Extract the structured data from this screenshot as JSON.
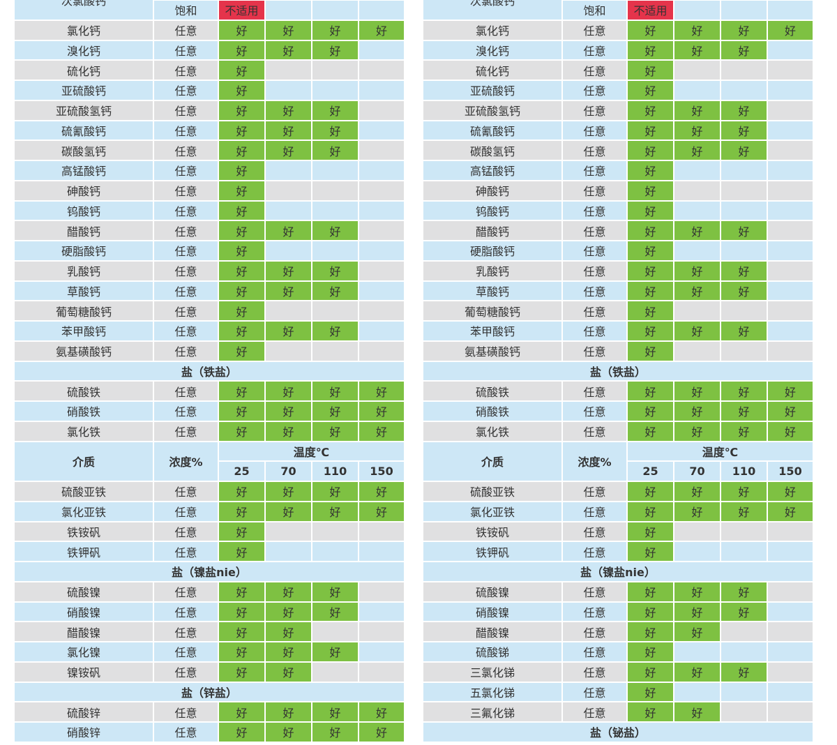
{
  "tables": [
    {
      "rows": [
        {
          "name": "次氯酸钙",
          "conc": "饱和",
          "cells": [
            "不适用"
          ],
          "cell_color": "#e5344b"
        },
        {
          "name": "氯化钙",
          "conc": "任意",
          "cells": [
            "好",
            "好",
            "好",
            "好"
          ]
        },
        {
          "name": "溴化钙",
          "conc": "任意",
          "cells": [
            "好",
            "好",
            "好"
          ]
        },
        {
          "name": "硫化钙",
          "conc": "任意",
          "cells": [
            "好"
          ]
        },
        {
          "name": "亚硫酸钙",
          "conc": "任意",
          "cells": [
            "好"
          ]
        },
        {
          "name": "亚硫酸氢钙",
          "conc": "任意",
          "cells": [
            "好",
            "好",
            "好"
          ]
        },
        {
          "name": "硫氰酸钙",
          "conc": "任意",
          "cells": [
            "好",
            "好",
            "好"
          ]
        },
        {
          "name": "碳酸氢钙",
          "conc": "任意",
          "cells": [
            "好",
            "好",
            "好"
          ]
        },
        {
          "name": "高锰酸钙",
          "conc": "任意",
          "cells": [
            "好"
          ]
        },
        {
          "name": "砷酸钙",
          "conc": "任意",
          "cells": [
            "好"
          ]
        },
        {
          "name": "钨酸钙",
          "conc": "任意",
          "cells": [
            "好"
          ]
        },
        {
          "name": "醋酸钙",
          "conc": "任意",
          "cells": [
            "好",
            "好",
            "好"
          ]
        },
        {
          "name": "硬脂酸钙",
          "conc": "任意",
          "cells": [
            "好"
          ]
        },
        {
          "name": "乳酸钙",
          "conc": "任意",
          "cells": [
            "好",
            "好",
            "好"
          ]
        },
        {
          "name": "草酸钙",
          "conc": "任意",
          "cells": [
            "好",
            "好",
            "好"
          ]
        },
        {
          "name": "葡萄糖酸钙",
          "conc": "任意",
          "cells": [
            "好"
          ]
        },
        {
          "name": "苯甲酸钙",
          "conc": "任意",
          "cells": [
            "好",
            "好",
            "好"
          ]
        },
        {
          "name": "氨基磺酸钙",
          "conc": "任意",
          "cells": [
            "好"
          ]
        },
        {
          "section": "盐（铁盐）"
        },
        {
          "name": "硫酸铁",
          "conc": "任意",
          "cells": [
            "好",
            "好",
            "好",
            "好"
          ]
        },
        {
          "name": "硝酸铁",
          "conc": "任意",
          "cells": [
            "好",
            "好",
            "好",
            "好"
          ]
        },
        {
          "name": "氯化铁",
          "conc": "任意",
          "cells": [
            "好",
            "好",
            "好",
            "好"
          ]
        },
        {
          "header": {
            "medium": "介质",
            "conc": "浓度%",
            "temp": "温度℃",
            "temps": [
              "25",
              "70",
              "110",
              "150"
            ]
          }
        },
        {
          "name": "硫酸亚铁",
          "conc": "任意",
          "cells": [
            "好",
            "好",
            "好",
            "好"
          ]
        },
        {
          "name": "氯化亚铁",
          "conc": "任意",
          "cells": [
            "好",
            "好",
            "好",
            "好"
          ]
        },
        {
          "name": "铁铵矾",
          "conc": "任意",
          "cells": [
            "好"
          ]
        },
        {
          "name": "铁钾矾",
          "conc": "任意",
          "cells": [
            "好"
          ]
        },
        {
          "section": "盐（镍盐nie）"
        },
        {
          "name": "硫酸镍",
          "conc": "任意",
          "cells": [
            "好",
            "好",
            "好"
          ]
        },
        {
          "name": "硝酸镍",
          "conc": "任意",
          "cells": [
            "好",
            "好",
            "好"
          ]
        },
        {
          "name": "醋酸镍",
          "conc": "任意",
          "cells": [
            "好",
            "好"
          ]
        },
        {
          "name": "氯化镍",
          "conc": "任意",
          "cells": [
            "好",
            "好",
            "好"
          ]
        },
        {
          "name": "镍铵矾",
          "conc": "任意",
          "cells": [
            "好",
            "好"
          ]
        },
        {
          "section": "盐（锌盐）"
        },
        {
          "name": "硫酸锌",
          "conc": "任意",
          "cells": [
            "好",
            "好",
            "好",
            "好"
          ]
        },
        {
          "name": "硝酸锌",
          "conc": "任意",
          "cells": [
            "好",
            "好",
            "好",
            "好"
          ]
        }
      ]
    },
    {
      "rows": [
        {
          "name": "次氯酸钙",
          "conc": "饱和",
          "cells": [
            "不适用"
          ],
          "cell_color": "#e5344b"
        },
        {
          "name": "氯化钙",
          "conc": "任意",
          "cells": [
            "好",
            "好",
            "好",
            "好"
          ]
        },
        {
          "name": "溴化钙",
          "conc": "任意",
          "cells": [
            "好",
            "好",
            "好"
          ]
        },
        {
          "name": "硫化钙",
          "conc": "任意",
          "cells": [
            "好"
          ]
        },
        {
          "name": "亚硫酸钙",
          "conc": "任意",
          "cells": [
            "好"
          ]
        },
        {
          "name": "亚硫酸氢钙",
          "conc": "任意",
          "cells": [
            "好",
            "好",
            "好"
          ]
        },
        {
          "name": "硫氰酸钙",
          "conc": "任意",
          "cells": [
            "好",
            "好",
            "好"
          ]
        },
        {
          "name": "碳酸氢钙",
          "conc": "任意",
          "cells": [
            "好",
            "好",
            "好"
          ]
        },
        {
          "name": "高锰酸钙",
          "conc": "任意",
          "cells": [
            "好"
          ]
        },
        {
          "name": "砷酸钙",
          "conc": "任意",
          "cells": [
            "好"
          ]
        },
        {
          "name": "钨酸钙",
          "conc": "任意",
          "cells": [
            "好"
          ]
        },
        {
          "name": "醋酸钙",
          "conc": "任意",
          "cells": [
            "好",
            "好",
            "好"
          ]
        },
        {
          "name": "硬脂酸钙",
          "conc": "任意",
          "cells": [
            "好"
          ]
        },
        {
          "name": "乳酸钙",
          "conc": "任意",
          "cells": [
            "好",
            "好",
            "好"
          ]
        },
        {
          "name": "草酸钙",
          "conc": "任意",
          "cells": [
            "好",
            "好",
            "好"
          ]
        },
        {
          "name": "葡萄糖酸钙",
          "conc": "任意",
          "cells": [
            "好"
          ]
        },
        {
          "name": "苯甲酸钙",
          "conc": "任意",
          "cells": [
            "好",
            "好",
            "好"
          ]
        },
        {
          "name": "氨基磺酸钙",
          "conc": "任意",
          "cells": [
            "好"
          ]
        },
        {
          "section": "盐（铁盐）"
        },
        {
          "name": "硫酸铁",
          "conc": "任意",
          "cells": [
            "好",
            "好",
            "好",
            "好"
          ]
        },
        {
          "name": "硝酸铁",
          "conc": "任意",
          "cells": [
            "好",
            "好",
            "好",
            "好"
          ]
        },
        {
          "name": "氯化铁",
          "conc": "任意",
          "cells": [
            "好",
            "好",
            "好",
            "好"
          ]
        },
        {
          "header": {
            "medium": "介质",
            "conc": "浓度%",
            "temp": "温度℃",
            "temps": [
              "25",
              "70",
              "110",
              "150"
            ]
          }
        },
        {
          "name": "硫酸亚铁",
          "conc": "任意",
          "cells": [
            "好",
            "好",
            "好",
            "好"
          ]
        },
        {
          "name": "氯化亚铁",
          "conc": "任意",
          "cells": [
            "好",
            "好",
            "好",
            "好"
          ]
        },
        {
          "name": "铁铵矾",
          "conc": "任意",
          "cells": [
            "好"
          ]
        },
        {
          "name": "铁钾矾",
          "conc": "任意",
          "cells": [
            "好"
          ]
        },
        {
          "section": "盐（镍盐nie）"
        },
        {
          "name": "硫酸镍",
          "conc": "任意",
          "cells": [
            "好",
            "好",
            "好"
          ]
        },
        {
          "name": "硝酸镍",
          "conc": "任意",
          "cells": [
            "好",
            "好",
            "好"
          ]
        },
        {
          "name": "醋酸镍",
          "conc": "任意",
          "cells": [
            "好",
            "好"
          ]
        },
        {
          "name": "硫酸锑",
          "conc": "任意",
          "cells": [
            "好"
          ]
        },
        {
          "name": "三氯化锑",
          "conc": "任意",
          "cells": [
            "好",
            "好",
            "好"
          ]
        },
        {
          "name": "五氯化锑",
          "conc": "任意",
          "cells": [
            "好"
          ]
        },
        {
          "name": "三氟化锑",
          "conc": "任意",
          "cells": [
            "好",
            "好"
          ]
        },
        {
          "section": "盐（铋盐）"
        }
      ]
    }
  ]
}
